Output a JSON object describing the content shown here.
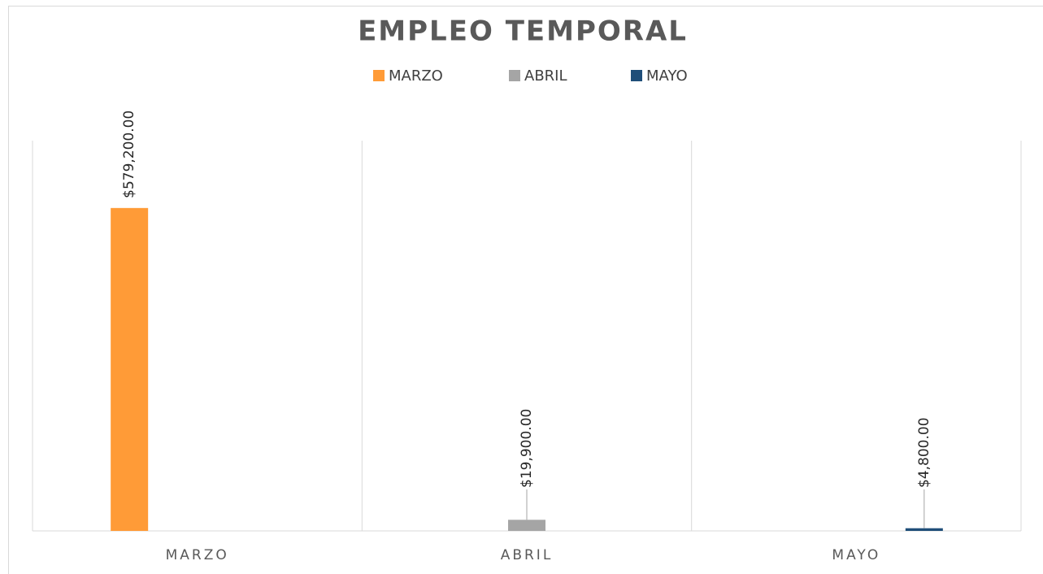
{
  "chart_data": {
    "type": "bar",
    "title": "EMPLEO TEMPORAL",
    "categories": [
      "MARZO",
      "ABRIL",
      "MAYO"
    ],
    "series": [
      {
        "name": "MARZO",
        "color": "#ff9b37",
        "values": [
          579200,
          null,
          null
        ],
        "value_labels": [
          "$579,200.00",
          null,
          null
        ]
      },
      {
        "name": "ABRIL",
        "color": "#a5a5a5",
        "values": [
          null,
          19900,
          null
        ],
        "value_labels": [
          null,
          "$19,900.00",
          null
        ]
      },
      {
        "name": "MAYO",
        "color": "#1f4e79",
        "values": [
          null,
          null,
          4800
        ],
        "value_labels": [
          null,
          null,
          "$4,800.00"
        ]
      }
    ],
    "ylim": [
      0,
      700000
    ],
    "legend": "top",
    "grid": false
  }
}
